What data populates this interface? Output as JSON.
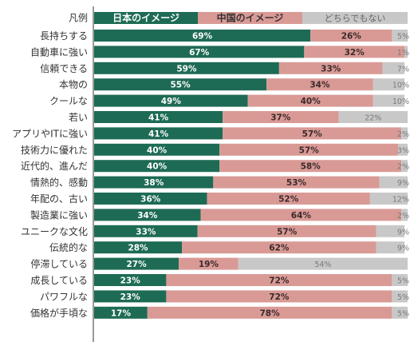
{
  "chart_data": {
    "type": "bar",
    "stacked": true,
    "orientation": "horizontal",
    "legend_title": "凡例",
    "legend_position": "top",
    "grid": false,
    "xlim": [
      0,
      100
    ],
    "categories": [
      "長持ちする",
      "自動車に強い",
      "信頼できる",
      "本物の",
      "クールな",
      "若い",
      "アプリやITに強い",
      "技術力に優れた",
      "近代的、進んだ",
      "情熱的、感動",
      "年配の、古い",
      "製造業に強い",
      "ユニークな文化",
      "伝統的な",
      "停滞している",
      "成長している",
      "パワフルな",
      "価格が手頃な"
    ],
    "series": [
      {
        "name": "日本のイメージ",
        "color": "#1e6b55",
        "values": [
          69,
          67,
          59,
          55,
          49,
          41,
          41,
          40,
          40,
          38,
          36,
          34,
          33,
          28,
          27,
          23,
          23,
          17
        ]
      },
      {
        "name": "中国のイメージ",
        "color": "#d99a96",
        "values": [
          26,
          32,
          33,
          34,
          40,
          37,
          57,
          57,
          58,
          53,
          52,
          64,
          57,
          62,
          19,
          72,
          72,
          78
        ]
      },
      {
        "name": "どちらでもない",
        "color": "#c8c8c8",
        "values": [
          5,
          1,
          7,
          10,
          10,
          22,
          2,
          3,
          2,
          9,
          12,
          2,
          9,
          9,
          54,
          5,
          5,
          5
        ]
      }
    ]
  }
}
